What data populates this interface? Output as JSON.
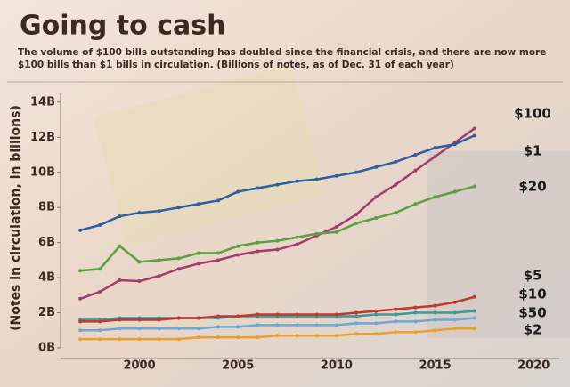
{
  "chart_data": {
    "type": "line",
    "title": "Going to cash",
    "subtitle": "The volume of $100 bills outstanding has doubled since the financial crisis, and there are now more $100 bills than $1 bills in circulation. (Billions of notes, as of Dec. 31 of each year)",
    "y_label": "(Notes in circulation, in billions)",
    "x": [
      1997,
      1998,
      1999,
      2000,
      2001,
      2002,
      2003,
      2004,
      2005,
      2006,
      2007,
      2008,
      2009,
      2010,
      2011,
      2012,
      2013,
      2014,
      2015,
      2016,
      2017
    ],
    "series": [
      {
        "name": "$100",
        "color": "#a23d6b",
        "values": [
          2.8,
          3.2,
          3.85,
          3.8,
          4.1,
          4.5,
          4.8,
          5.0,
          5.3,
          5.5,
          5.6,
          5.9,
          6.4,
          6.9,
          7.6,
          8.6,
          9.3,
          10.1,
          10.9,
          11.7,
          12.5
        ]
      },
      {
        "name": "$1",
        "color": "#2d5e9e",
        "values": [
          6.7,
          7.0,
          7.5,
          7.7,
          7.8,
          8.0,
          8.2,
          8.4,
          8.9,
          9.1,
          9.3,
          9.5,
          9.6,
          9.8,
          10.0,
          10.3,
          10.6,
          11.0,
          11.4,
          11.6,
          12.1
        ]
      },
      {
        "name": "$20",
        "color": "#5b9f3e",
        "values": [
          4.4,
          4.5,
          5.8,
          4.9,
          5.0,
          5.1,
          5.4,
          5.4,
          5.8,
          6.0,
          6.1,
          6.3,
          6.5,
          6.6,
          7.1,
          7.4,
          7.7,
          8.2,
          8.6,
          8.9,
          9.2
        ]
      },
      {
        "name": "$5",
        "color": "#3a9aa0",
        "values": [
          1.6,
          1.6,
          1.7,
          1.7,
          1.7,
          1.7,
          1.7,
          1.7,
          1.8,
          1.8,
          1.8,
          1.8,
          1.8,
          1.8,
          1.8,
          1.9,
          1.9,
          2.0,
          2.0,
          2.0,
          2.1
        ]
      },
      {
        "name": "$10",
        "color": "#c0392b",
        "values": [
          1.5,
          1.5,
          1.6,
          1.6,
          1.6,
          1.7,
          1.7,
          1.8,
          1.8,
          1.9,
          1.9,
          1.9,
          1.9,
          1.9,
          2.0,
          2.1,
          2.2,
          2.3,
          2.4,
          2.6,
          2.9
        ]
      },
      {
        "name": "$50",
        "color": "#6fa8d6",
        "values": [
          1.0,
          1.0,
          1.1,
          1.1,
          1.1,
          1.1,
          1.1,
          1.2,
          1.2,
          1.3,
          1.3,
          1.3,
          1.3,
          1.3,
          1.4,
          1.4,
          1.5,
          1.5,
          1.6,
          1.6,
          1.7
        ]
      },
      {
        "name": "$2",
        "color": "#e8a030",
        "values": [
          0.5,
          0.5,
          0.5,
          0.5,
          0.5,
          0.5,
          0.6,
          0.6,
          0.6,
          0.6,
          0.7,
          0.7,
          0.7,
          0.7,
          0.8,
          0.8,
          0.9,
          0.9,
          1.0,
          1.1,
          1.1
        ]
      }
    ],
    "xlim": [
      1996,
      2021.3
    ],
    "xticks": [
      2000,
      2005,
      2010,
      2015,
      2020
    ],
    "ylim": [
      0,
      14.5
    ],
    "yticks": [
      {
        "value": 0,
        "label": "0B"
      },
      {
        "value": 2,
        "label": "2B"
      },
      {
        "value": 4,
        "label": "4B"
      },
      {
        "value": 6,
        "label": "6B"
      },
      {
        "value": 8,
        "label": "8B"
      },
      {
        "value": 10,
        "label": "10B"
      },
      {
        "value": 12,
        "label": "12B"
      },
      {
        "value": 14,
        "label": "14B"
      }
    ]
  }
}
